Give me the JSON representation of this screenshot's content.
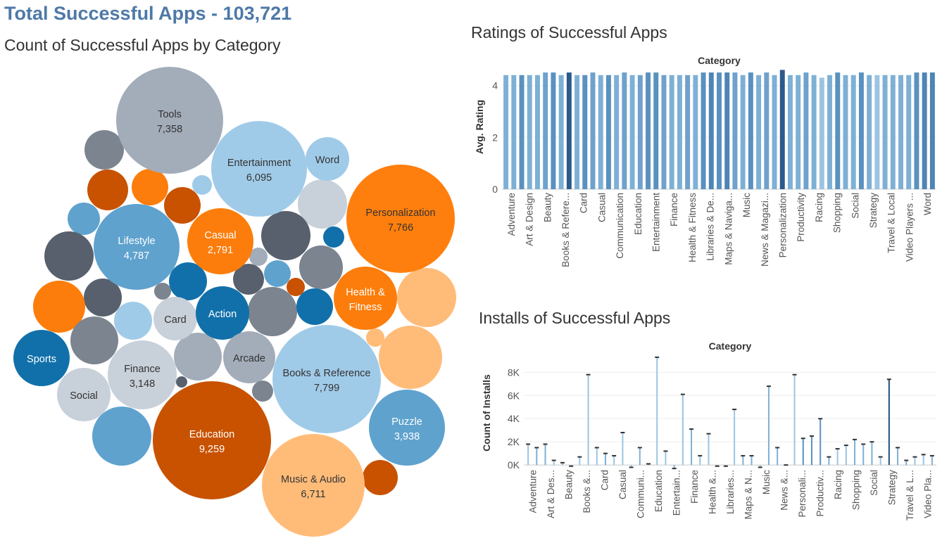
{
  "header": {
    "main_title": "Total Successful Apps - 103,721",
    "bubble_title": "Count of Successful Apps by Category",
    "ratings_title": "Ratings of Successful Apps",
    "installs_title": "Installs of Successful Apps"
  },
  "chart_data": [
    {
      "type": "bubble",
      "title": "Count of Successful Apps by Category",
      "labeled": [
        {
          "label": "Tools",
          "value": "7,358",
          "color": "#a3acb9"
        },
        {
          "label": "Entertainment",
          "value": "6,095",
          "color": "#a0cbe8"
        },
        {
          "label": "Word",
          "value": "",
          "color": "#a0cbe8"
        },
        {
          "label": "Personalization",
          "value": "7,766",
          "color": "#ff7f0e"
        },
        {
          "label": "Lifestyle",
          "value": "4,787",
          "color": "#5fa2ce"
        },
        {
          "label": "Casual",
          "value": "2,791",
          "color": "#fc7d0b"
        },
        {
          "label": "Health &",
          "value": "Fitness",
          "color": "#fc7d0b"
        },
        {
          "label": "Card",
          "value": "",
          "color": "#c8d0d9"
        },
        {
          "label": "Action",
          "value": "",
          "color": "#1170aa"
        },
        {
          "label": "Sports",
          "value": "",
          "color": "#1170aa"
        },
        {
          "label": "Finance",
          "value": "3,148",
          "color": "#c8d0d9"
        },
        {
          "label": "Arcade",
          "value": "",
          "color": "#a3acb9"
        },
        {
          "label": "Books & Reference",
          "value": "7,799",
          "color": "#a0cbe8"
        },
        {
          "label": "Social",
          "value": "",
          "color": "#c8d0d9"
        },
        {
          "label": "Education",
          "value": "9,259",
          "color": "#c85200"
        },
        {
          "label": "Puzzle",
          "value": "3,938",
          "color": "#5fa2ce"
        },
        {
          "label": "Music & Audio",
          "value": "6,711",
          "color": "#ffbc79"
        }
      ],
      "unlabeled_colors": [
        "#7b848f",
        "#c85200",
        "#fc7d0b",
        "#c85200",
        "#a0cbe8",
        "#5fa2ce",
        "#c8d0d9",
        "#57606c",
        "#1170aa",
        "#57606c",
        "#a3acb9",
        "#57606c",
        "#1170aa",
        "#5fa2ce",
        "#c85200",
        "#7b848f",
        "#7b848f",
        "#57606c",
        "#a0cbe8",
        "#7b848f",
        "#1170aa",
        "#fc7d0b",
        "#7b848f",
        "#ffbc79",
        "#a3acb9",
        "#ffbc79",
        "#57606c",
        "#7b848f",
        "#ffbc79",
        "#5fa2ce",
        "#a3acb9",
        "#c85200",
        "#ffbc79"
      ]
    },
    {
      "type": "bar",
      "title": "Ratings of Successful Apps",
      "column_header": "Category",
      "ylabel": "Avg. Rating",
      "ylim": [
        0,
        4.8
      ],
      "yticks": [
        0,
        2,
        4
      ],
      "tick_labels": [
        "Adventure",
        "Art & Design",
        "Beauty",
        "Books & Refere...",
        "Card",
        "Casual",
        "Communication",
        "Education",
        "Entertainment",
        "Finance",
        "Health & Fitness",
        "Libraries & De...",
        "Maps & Naviga...",
        "Music",
        "News & Magazi...",
        "Personalization",
        "Productivity",
        "Racing",
        "Shopping",
        "Social",
        "Strategy",
        "Travel & Local",
        "Video Players ...",
        "Word"
      ],
      "values": [
        4.4,
        4.4,
        4.4,
        4.4,
        4.4,
        4.5,
        4.5,
        4.4,
        4.5,
        4.4,
        4.4,
        4.5,
        4.4,
        4.4,
        4.4,
        4.5,
        4.4,
        4.4,
        4.5,
        4.5,
        4.4,
        4.4,
        4.4,
        4.4,
        4.4,
        4.5,
        4.5,
        4.5,
        4.5,
        4.5,
        4.4,
        4.5,
        4.4,
        4.5,
        4.4,
        4.6,
        4.4,
        4.4,
        4.5,
        4.4,
        4.3,
        4.4,
        4.5,
        4.4,
        4.4,
        4.5,
        4.4,
        4.4,
        4.4,
        4.4,
        4.4,
        4.4,
        4.5,
        4.5,
        4.5
      ],
      "colors": [
        "#7eb0d5",
        "#7eb0d5",
        "#5a91bf",
        "#7eb0d5",
        "#7eb0d5",
        "#6fa1cc",
        "#5a91bf",
        "#7eb0d5",
        "#2c5a8c",
        "#7eb0d5",
        "#5a91bf",
        "#6fa1cc",
        "#7eb0d5",
        "#5a91bf",
        "#7eb0d5",
        "#6fa1cc",
        "#7eb0d5",
        "#6fa1cc",
        "#5a91bf",
        "#5a91bf",
        "#6fa1cc",
        "#7eb0d5",
        "#7eb0d5",
        "#6fa1cc",
        "#7eb0d5",
        "#5a91bf",
        "#4f84b5",
        "#5a91bf",
        "#4f84b5",
        "#6fa1cc",
        "#7eb0d5",
        "#5a91bf",
        "#7eb0d5",
        "#6fa1cc",
        "#7eb0d5",
        "#2c5a8c",
        "#7eb0d5",
        "#7eb0d5",
        "#6fa1cc",
        "#7eb0d5",
        "#9cc4e2",
        "#7eb0d5",
        "#5a91bf",
        "#7eb0d5",
        "#7eb0d5",
        "#5a91bf",
        "#7eb0d5",
        "#9cc4e2",
        "#7eb0d5",
        "#7eb0d5",
        "#7eb0d5",
        "#7eb0d5",
        "#5a91bf",
        "#4f84b5",
        "#4f84b5"
      ]
    },
    {
      "type": "bar",
      "title": "Installs of Successful Apps",
      "column_header": "Category",
      "ylabel": "Count of Installs",
      "ylim": [
        -600,
        9600
      ],
      "yticks": [
        0,
        2000,
        4000,
        6000,
        8000
      ],
      "ytick_labels": [
        "0K",
        "2K",
        "4K",
        "6K",
        "8K"
      ],
      "tick_labels": [
        "Adventure",
        "Art & Des...",
        "Beauty",
        "Books &...",
        "Card",
        "Casual",
        "Communi...",
        "Education",
        "Entertain...",
        "Finance",
        "Health &...",
        "Libraries...",
        "Maps & N...",
        "Music",
        "News &...",
        "Personali...",
        "Productiv...",
        "Racing",
        "Shopping",
        "Social",
        "Strategy",
        "Travel & L...",
        "Video Pla..."
      ],
      "values": [
        1800,
        1500,
        1800,
        400,
        200,
        -100,
        700,
        7800,
        1500,
        1000,
        800,
        2800,
        -200,
        1500,
        100,
        9300,
        1200,
        -300,
        6100,
        3100,
        800,
        2700,
        -100,
        -100,
        4800,
        800,
        800,
        -200,
        6800,
        1500,
        0,
        7800,
        2300,
        2500,
        4000,
        700,
        1400,
        1700,
        2200,
        1800,
        2000,
        700,
        7400,
        1500,
        400,
        700,
        900,
        800
      ],
      "colors": [
        "#9cc4e2",
        "#7eb0d5",
        "#7eb0d5",
        "#9cc4e2",
        "#7eb0d5",
        "#7eb0d5",
        "#9cc4e2",
        "#9cc4e2",
        "#9cc4e2",
        "#7eb0d5",
        "#9cc4e2",
        "#9cc4e2",
        "#9cc4e2",
        "#7eb0d5",
        "#7eb0d5",
        "#9cc4e2",
        "#9cc4e2",
        "#7eb0d5",
        "#9cc4e2",
        "#7eb0d5",
        "#9cc4e2",
        "#9cc4e2",
        "#7eb0d5",
        "#9cc4e2",
        "#9cc4e2",
        "#7eb0d5",
        "#7eb0d5",
        "#9cc4e2",
        "#7eb0d5",
        "#7eb0d5",
        "#7eb0d5",
        "#9cc4e2",
        "#5a91bf",
        "#5a91bf",
        "#5a91bf",
        "#7eb0d5",
        "#9cc4e2",
        "#9cc4e2",
        "#7eb0d5",
        "#7eb0d5",
        "#7eb0d5",
        "#9cc4e2",
        "#1f4e7a",
        "#7eb0d5",
        "#7eb0d5",
        "#9cc4e2",
        "#9cc4e2",
        "#7eb0d5"
      ]
    }
  ]
}
